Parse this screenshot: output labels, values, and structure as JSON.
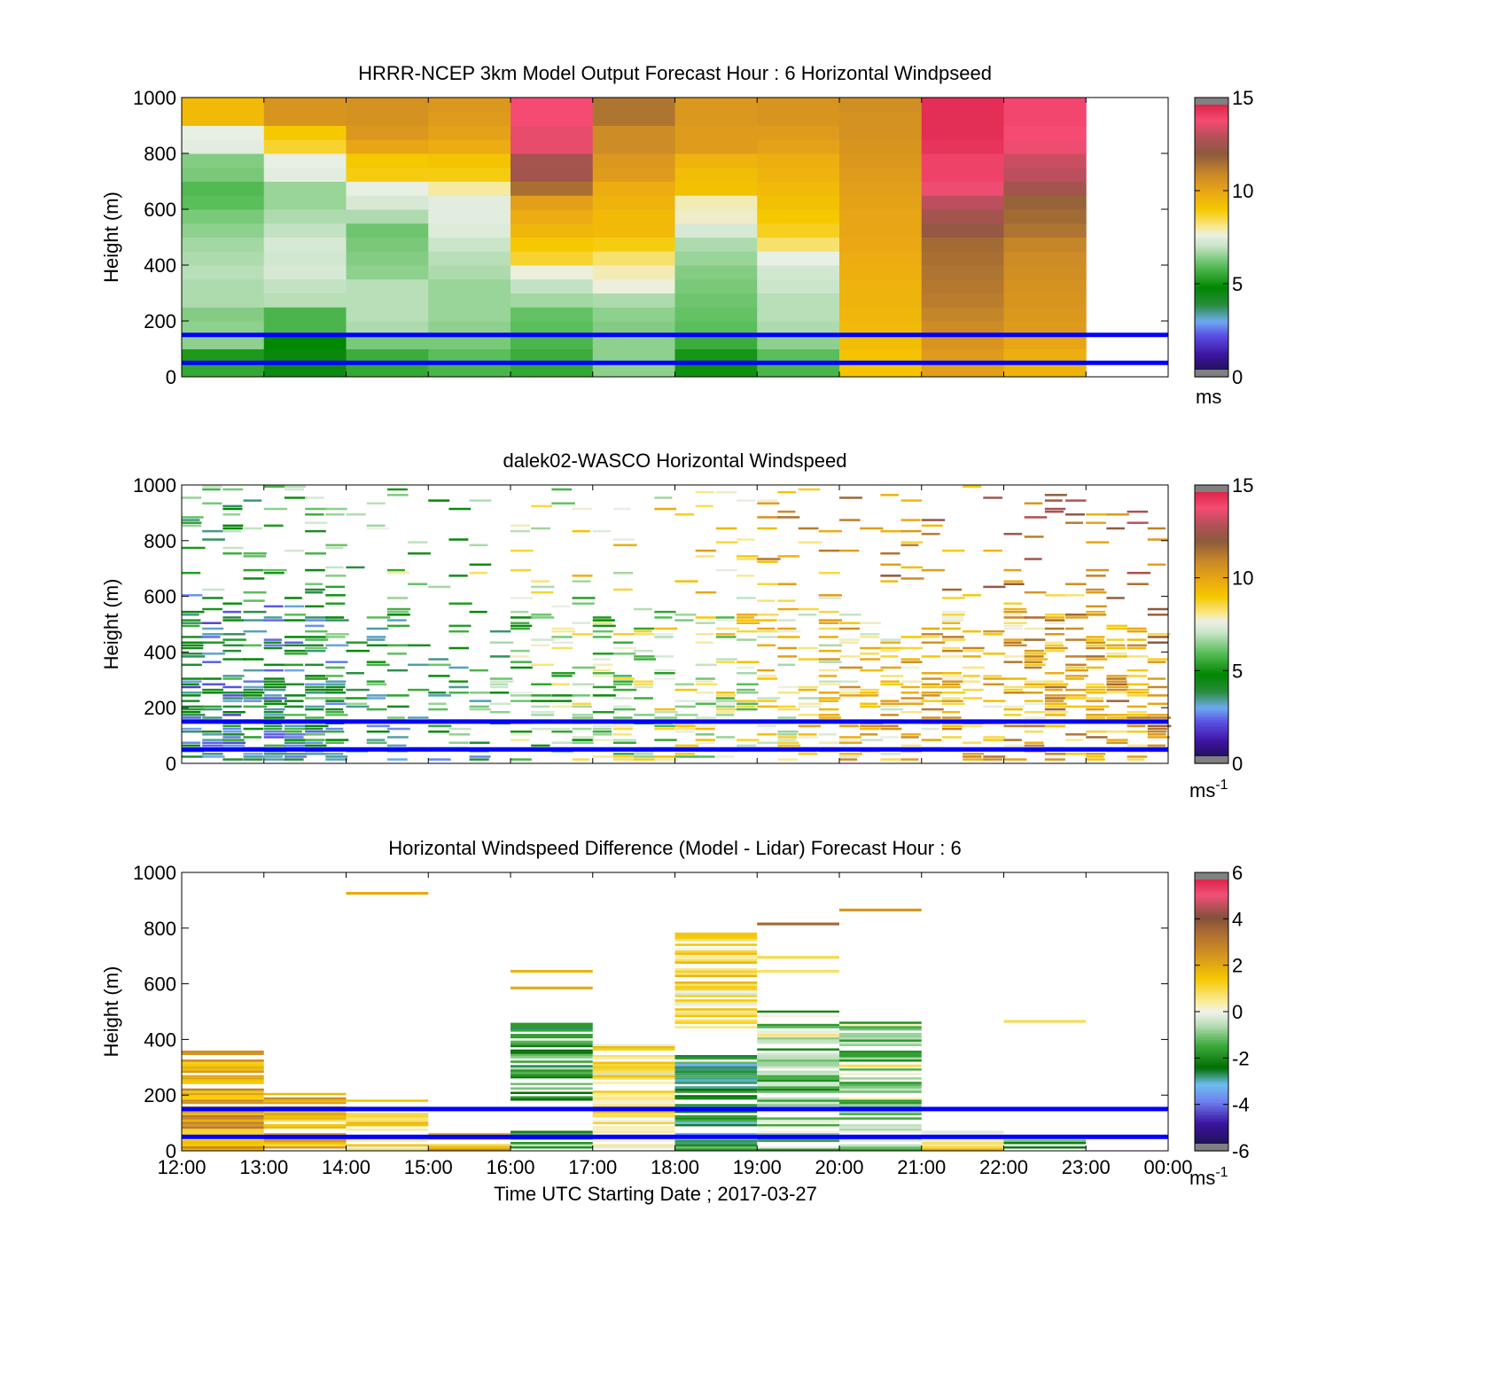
{
  "panels": [
    {
      "title": "HRRR-NCEP 3km Model Output   Forecast Hour : 6 Horizontal Windpseed",
      "ylabel": "Height (m)",
      "colorbar_unit": "ms",
      "colorbar_unit_sup": ""
    },
    {
      "title": "dalek02-WASCO  Horizontal Windspeed",
      "ylabel": "Height (m)",
      "colorbar_unit": "ms",
      "colorbar_unit_sup": "-1"
    },
    {
      "title": "Horizontal Windspeed Difference (Model - Lidar) Forecast Hour : 6",
      "ylabel": "Height (m)",
      "colorbar_unit": "ms",
      "colorbar_unit_sup": "-1"
    }
  ],
  "xlabel": "Time UTC  Starting Date ; 2017-03-27",
  "chart_data": [
    {
      "type": "heatmap",
      "title": "HRRR-NCEP 3km Model Output   Forecast Hour : 6 Horizontal Windpseed",
      "ylabel": "Height (m)",
      "ylim": [
        0,
        1000
      ],
      "yticks": [
        "0",
        "200",
        "400",
        "600",
        "800",
        "1000"
      ],
      "xlim": [
        "12:00",
        "00:00"
      ],
      "colorbar": {
        "min": 0,
        "max": 15,
        "ticks": [
          "0",
          "5",
          "10",
          "15"
        ],
        "unit": "ms"
      },
      "reference_lines_m": [
        50,
        150
      ],
      "x_hours": [
        "12:00",
        "13:00",
        "14:00",
        "15:00",
        "16:00",
        "17:00",
        "18:00",
        "19:00",
        "20:00",
        "21:00",
        "22:00"
      ],
      "y_levels_m": [
        25,
        75,
        125,
        175,
        225,
        275,
        325,
        375,
        425,
        475,
        525,
        575,
        625,
        675,
        725,
        775,
        825,
        875,
        925,
        975
      ],
      "windspeed_ms": [
        [
          5.5,
          5.2,
          6.5,
          6.5,
          6.4,
          6.8,
          6.8,
          6.9,
          6.8,
          6.7,
          6.5,
          6.3,
          6.0,
          5.9,
          6.3,
          6.4,
          7.5,
          7.6,
          9.4,
          9.4
        ],
        [
          4.5,
          4.6,
          4.8,
          5.8,
          5.8,
          6.9,
          7.0,
          7.3,
          7.2,
          7.3,
          7.0,
          6.8,
          6.6,
          6.6,
          7.5,
          7.6,
          8.7,
          9.0,
          10.5,
          10.5
        ],
        [
          5.5,
          5.6,
          6.3,
          6.8,
          6.9,
          6.9,
          6.9,
          6.5,
          6.4,
          6.3,
          6.2,
          6.8,
          7.3,
          7.6,
          8.9,
          9.0,
          10.0,
          10.4,
          10.6,
          10.6
        ],
        [
          5.8,
          6.0,
          6.3,
          6.5,
          6.6,
          6.6,
          6.6,
          6.8,
          6.9,
          7.1,
          7.4,
          7.5,
          7.5,
          8.0,
          8.9,
          9.1,
          9.8,
          10.1,
          10.3,
          10.4
        ],
        [
          5.5,
          5.6,
          5.8,
          6.0,
          6.1,
          6.7,
          7.0,
          7.7,
          8.7,
          9.0,
          9.5,
          9.8,
          10.2,
          11.5,
          12.5,
          12.6,
          13.6,
          13.6,
          13.8,
          13.8
        ],
        [
          6.5,
          6.5,
          6.5,
          6.4,
          6.5,
          6.8,
          7.7,
          7.9,
          8.3,
          8.9,
          9.4,
          9.4,
          9.6,
          9.8,
          10.3,
          10.4,
          10.8,
          10.8,
          11.4,
          11.4
        ],
        [
          5.0,
          5.1,
          5.6,
          6.0,
          6.1,
          6.2,
          6.3,
          6.4,
          6.6,
          6.8,
          7.3,
          7.8,
          7.9,
          9.2,
          9.3,
          9.6,
          10.3,
          10.3,
          10.4,
          10.4
        ],
        [
          5.8,
          6.0,
          6.5,
          6.8,
          6.9,
          6.9,
          7.1,
          7.2,
          7.6,
          8.3,
          8.8,
          9.0,
          9.2,
          9.4,
          9.6,
          9.7,
          10.1,
          10.3,
          10.5,
          10.5
        ],
        [
          9.1,
          9.1,
          9.3,
          9.4,
          9.5,
          9.6,
          9.6,
          9.7,
          9.8,
          9.9,
          10.0,
          10.0,
          10.1,
          10.2,
          10.3,
          10.4,
          10.5,
          10.6,
          10.6,
          10.7
        ],
        [
          10.2,
          10.3,
          10.5,
          10.8,
          11.0,
          11.2,
          11.3,
          11.4,
          11.5,
          11.6,
          12.2,
          12.5,
          13.0,
          13.7,
          14.0,
          14.0,
          14.3,
          14.4,
          14.4,
          14.4
        ],
        [
          9.6,
          9.7,
          10.0,
          10.3,
          10.4,
          10.5,
          10.6,
          10.7,
          10.8,
          11.0,
          11.4,
          11.6,
          11.8,
          12.5,
          13.0,
          13.2,
          13.7,
          13.8,
          13.9,
          13.9
        ]
      ]
    },
    {
      "type": "heatmap",
      "title": "dalek02-WASCO  Horizontal Windspeed",
      "ylabel": "Height (m)",
      "ylim": [
        0,
        1000
      ],
      "yticks": [
        "0",
        "200",
        "400",
        "600",
        "800",
        "1000"
      ],
      "xlim": [
        "12:00",
        "00:00"
      ],
      "colorbar": {
        "min": 0,
        "max": 15,
        "ticks": [
          "0",
          "5",
          "10",
          "15"
        ],
        "unit": "ms-1"
      },
      "reference_lines_m": [
        50,
        150
      ],
      "note_values": "sparse lidar retrievals; windspeed roughly 3-5 m/s near surface 12:00-16:00, 6-8 m/s 16:00-19:00, 8-12 m/s after 19:00"
    },
    {
      "type": "heatmap",
      "title": "Horizontal Windspeed Difference (Model - Lidar) Forecast Hour : 6",
      "ylabel": "Height (m)",
      "ylim": [
        0,
        1000
      ],
      "yticks": [
        "0",
        "200",
        "400",
        "600",
        "800",
        "1000"
      ],
      "xlim": [
        "12:00",
        "00:00"
      ],
      "xticks": [
        "12:00",
        "13:00",
        "14:00",
        "15:00",
        "16:00",
        "17:00",
        "18:00",
        "19:00",
        "20:00",
        "21:00",
        "22:00",
        "23:00",
        "00:00"
      ],
      "colorbar": {
        "min": -6,
        "max": 6,
        "ticks": [
          "-6",
          "-4",
          "-2",
          "0",
          "2",
          "4",
          "6"
        ],
        "unit": "ms-1"
      },
      "reference_lines_m": [
        50,
        150
      ]
    }
  ]
}
